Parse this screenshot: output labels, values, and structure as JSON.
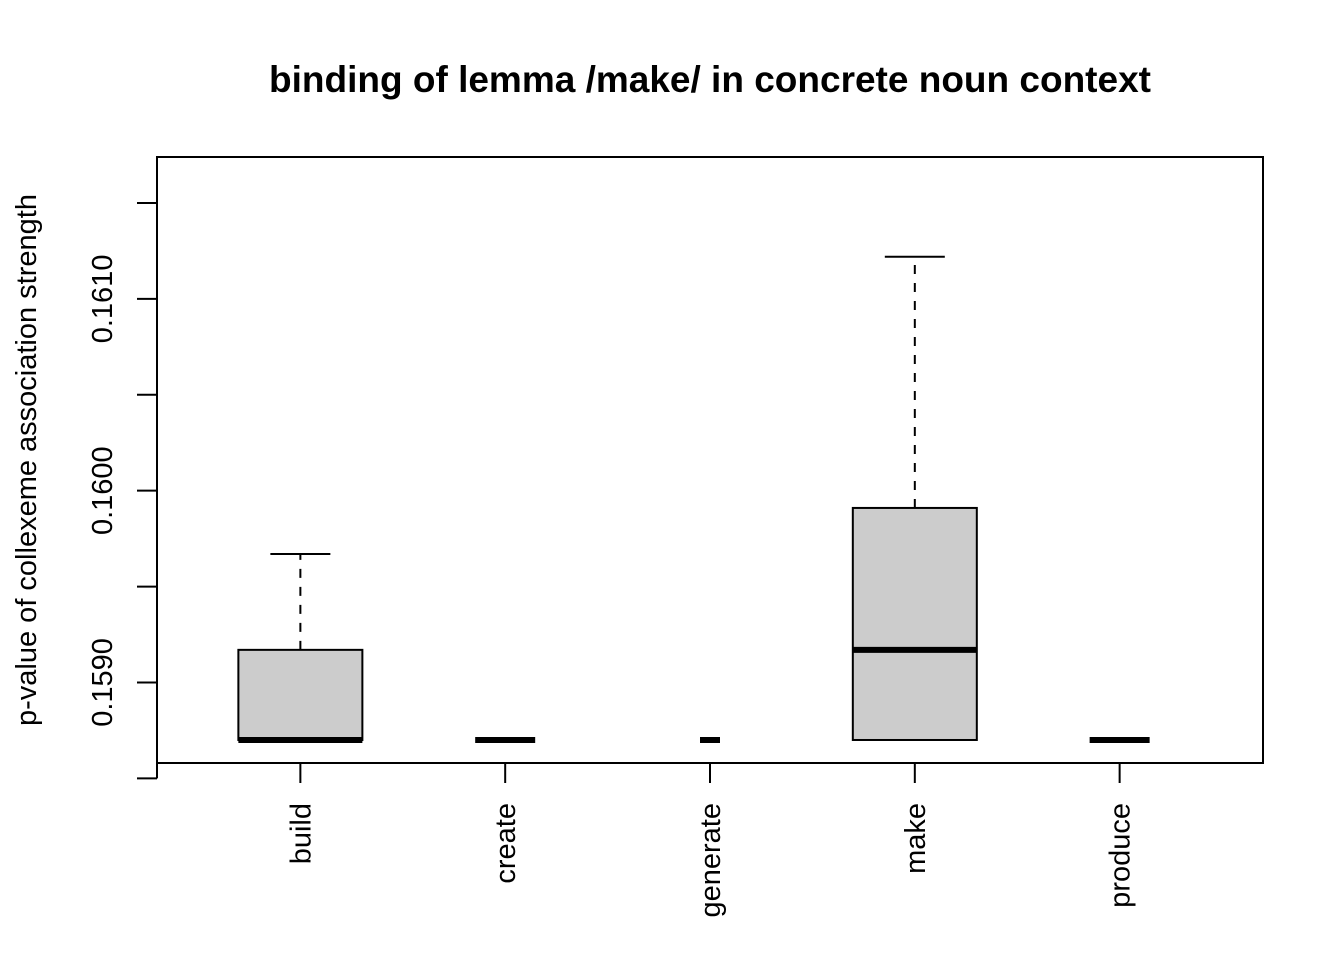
{
  "chart_data": {
    "type": "boxplot",
    "title": "binding of lemma /make/ in concrete noun context",
    "xlabel": "",
    "ylabel": "p-value of collexeme association strength",
    "categories": [
      "build",
      "create",
      "generate",
      "make",
      "produce"
    ],
    "boxes": [
      {
        "name": "build",
        "min": 0.1587,
        "q1": 0.1587,
        "median": 0.1587,
        "q3": 0.15917,
        "max": 0.15967
      },
      {
        "name": "create",
        "min": 0.1587,
        "q1": 0.1587,
        "median": 0.1587,
        "q3": 0.1587,
        "max": 0.1587
      },
      {
        "name": "generate",
        "min": 0.1587,
        "q1": 0.1587,
        "median": 0.1587,
        "q3": 0.1587,
        "max": 0.1587
      },
      {
        "name": "make",
        "min": 0.1587,
        "q1": 0.1587,
        "median": 0.15917,
        "q3": 0.15991,
        "max": 0.16122
      },
      {
        "name": "produce",
        "min": 0.1587,
        "q1": 0.1587,
        "median": 0.1587,
        "q3": 0.1587,
        "max": 0.1587
      }
    ],
    "yticks": [
      0.1585,
      0.159,
      0.1595,
      0.16,
      0.1605,
      0.161,
      0.1615
    ],
    "ytick_labels": [
      "",
      "0.1590",
      "",
      "0.1600",
      "",
      "0.1610",
      ""
    ],
    "ylim": [
      0.15858,
      0.16174
    ],
    "grid": false,
    "legend": "none",
    "colors": {
      "box_fill": "#cccccc",
      "stroke": "#000000",
      "background": "#ffffff"
    }
  }
}
